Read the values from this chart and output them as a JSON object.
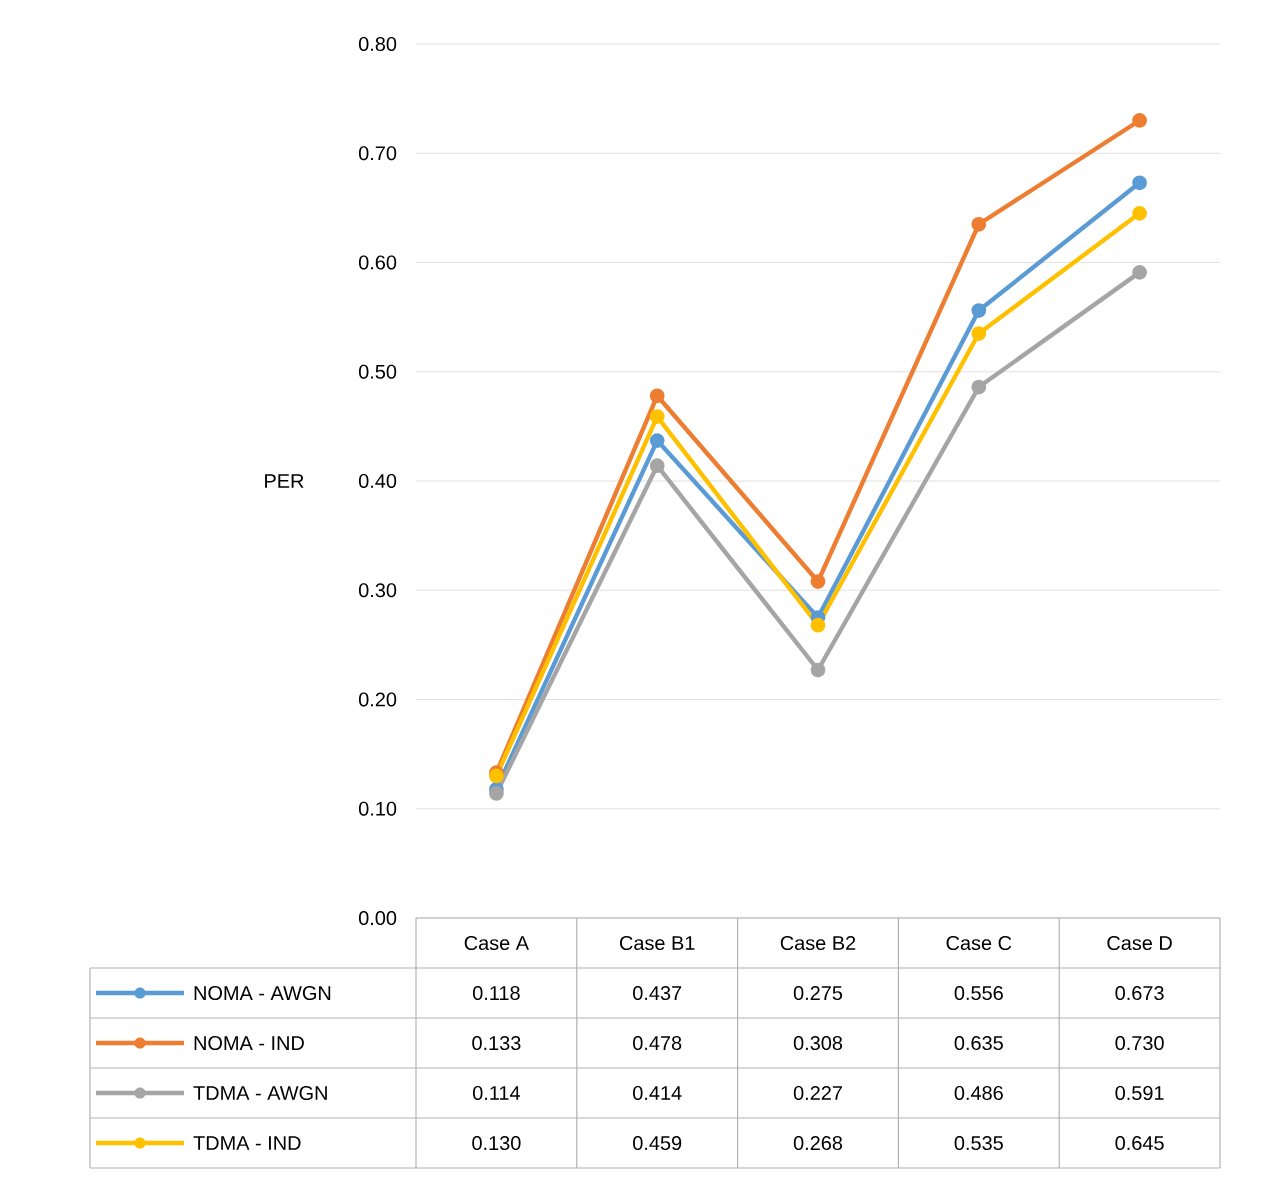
{
  "chart_data": {
    "type": "line",
    "ylabel": "PER",
    "categories": [
      "Case A",
      "Case B1",
      "Case B2",
      "Case C",
      "Case D"
    ],
    "series": [
      {
        "name": "NOMA - AWGN",
        "color": "#5b9bd5",
        "values": [
          0.118,
          0.437,
          0.275,
          0.556,
          0.673
        ],
        "value_labels": [
          "0.118",
          "0.437",
          "0.275",
          "0.556",
          "0.673"
        ]
      },
      {
        "name": "NOMA - IND",
        "color": "#ed7d31",
        "values": [
          0.133,
          0.478,
          0.308,
          0.635,
          0.73
        ],
        "value_labels": [
          "0.133",
          "0.478",
          "0.308",
          "0.635",
          "0.730"
        ]
      },
      {
        "name": "TDMA - AWGN",
        "color": "#a5a5a5",
        "values": [
          0.114,
          0.414,
          0.227,
          0.486,
          0.591
        ],
        "value_labels": [
          "0.114",
          "0.414",
          "0.227",
          "0.486",
          "0.591"
        ]
      },
      {
        "name": "TDMA - IND",
        "color": "#ffc000",
        "values": [
          0.13,
          0.459,
          0.268,
          0.535,
          0.645
        ],
        "value_labels": [
          "0.130",
          "0.459",
          "0.268",
          "0.535",
          "0.645"
        ]
      }
    ],
    "ylim": [
      0,
      0.8
    ],
    "yticks": [
      {
        "value": 0,
        "label": "0.00"
      },
      {
        "value": 0.1,
        "label": "0.10"
      },
      {
        "value": 0.2,
        "label": "0.20"
      },
      {
        "value": 0.3,
        "label": "0.30"
      },
      {
        "value": 0.4,
        "label": "0.40"
      },
      {
        "value": 0.5,
        "label": "0.50"
      },
      {
        "value": 0.6,
        "label": "0.60"
      },
      {
        "value": 0.7,
        "label": "0.70"
      },
      {
        "value": 0.8,
        "label": "0.80"
      }
    ],
    "grid": "y",
    "legend": "bottom",
    "marker": "circle",
    "line_style": "solid"
  }
}
